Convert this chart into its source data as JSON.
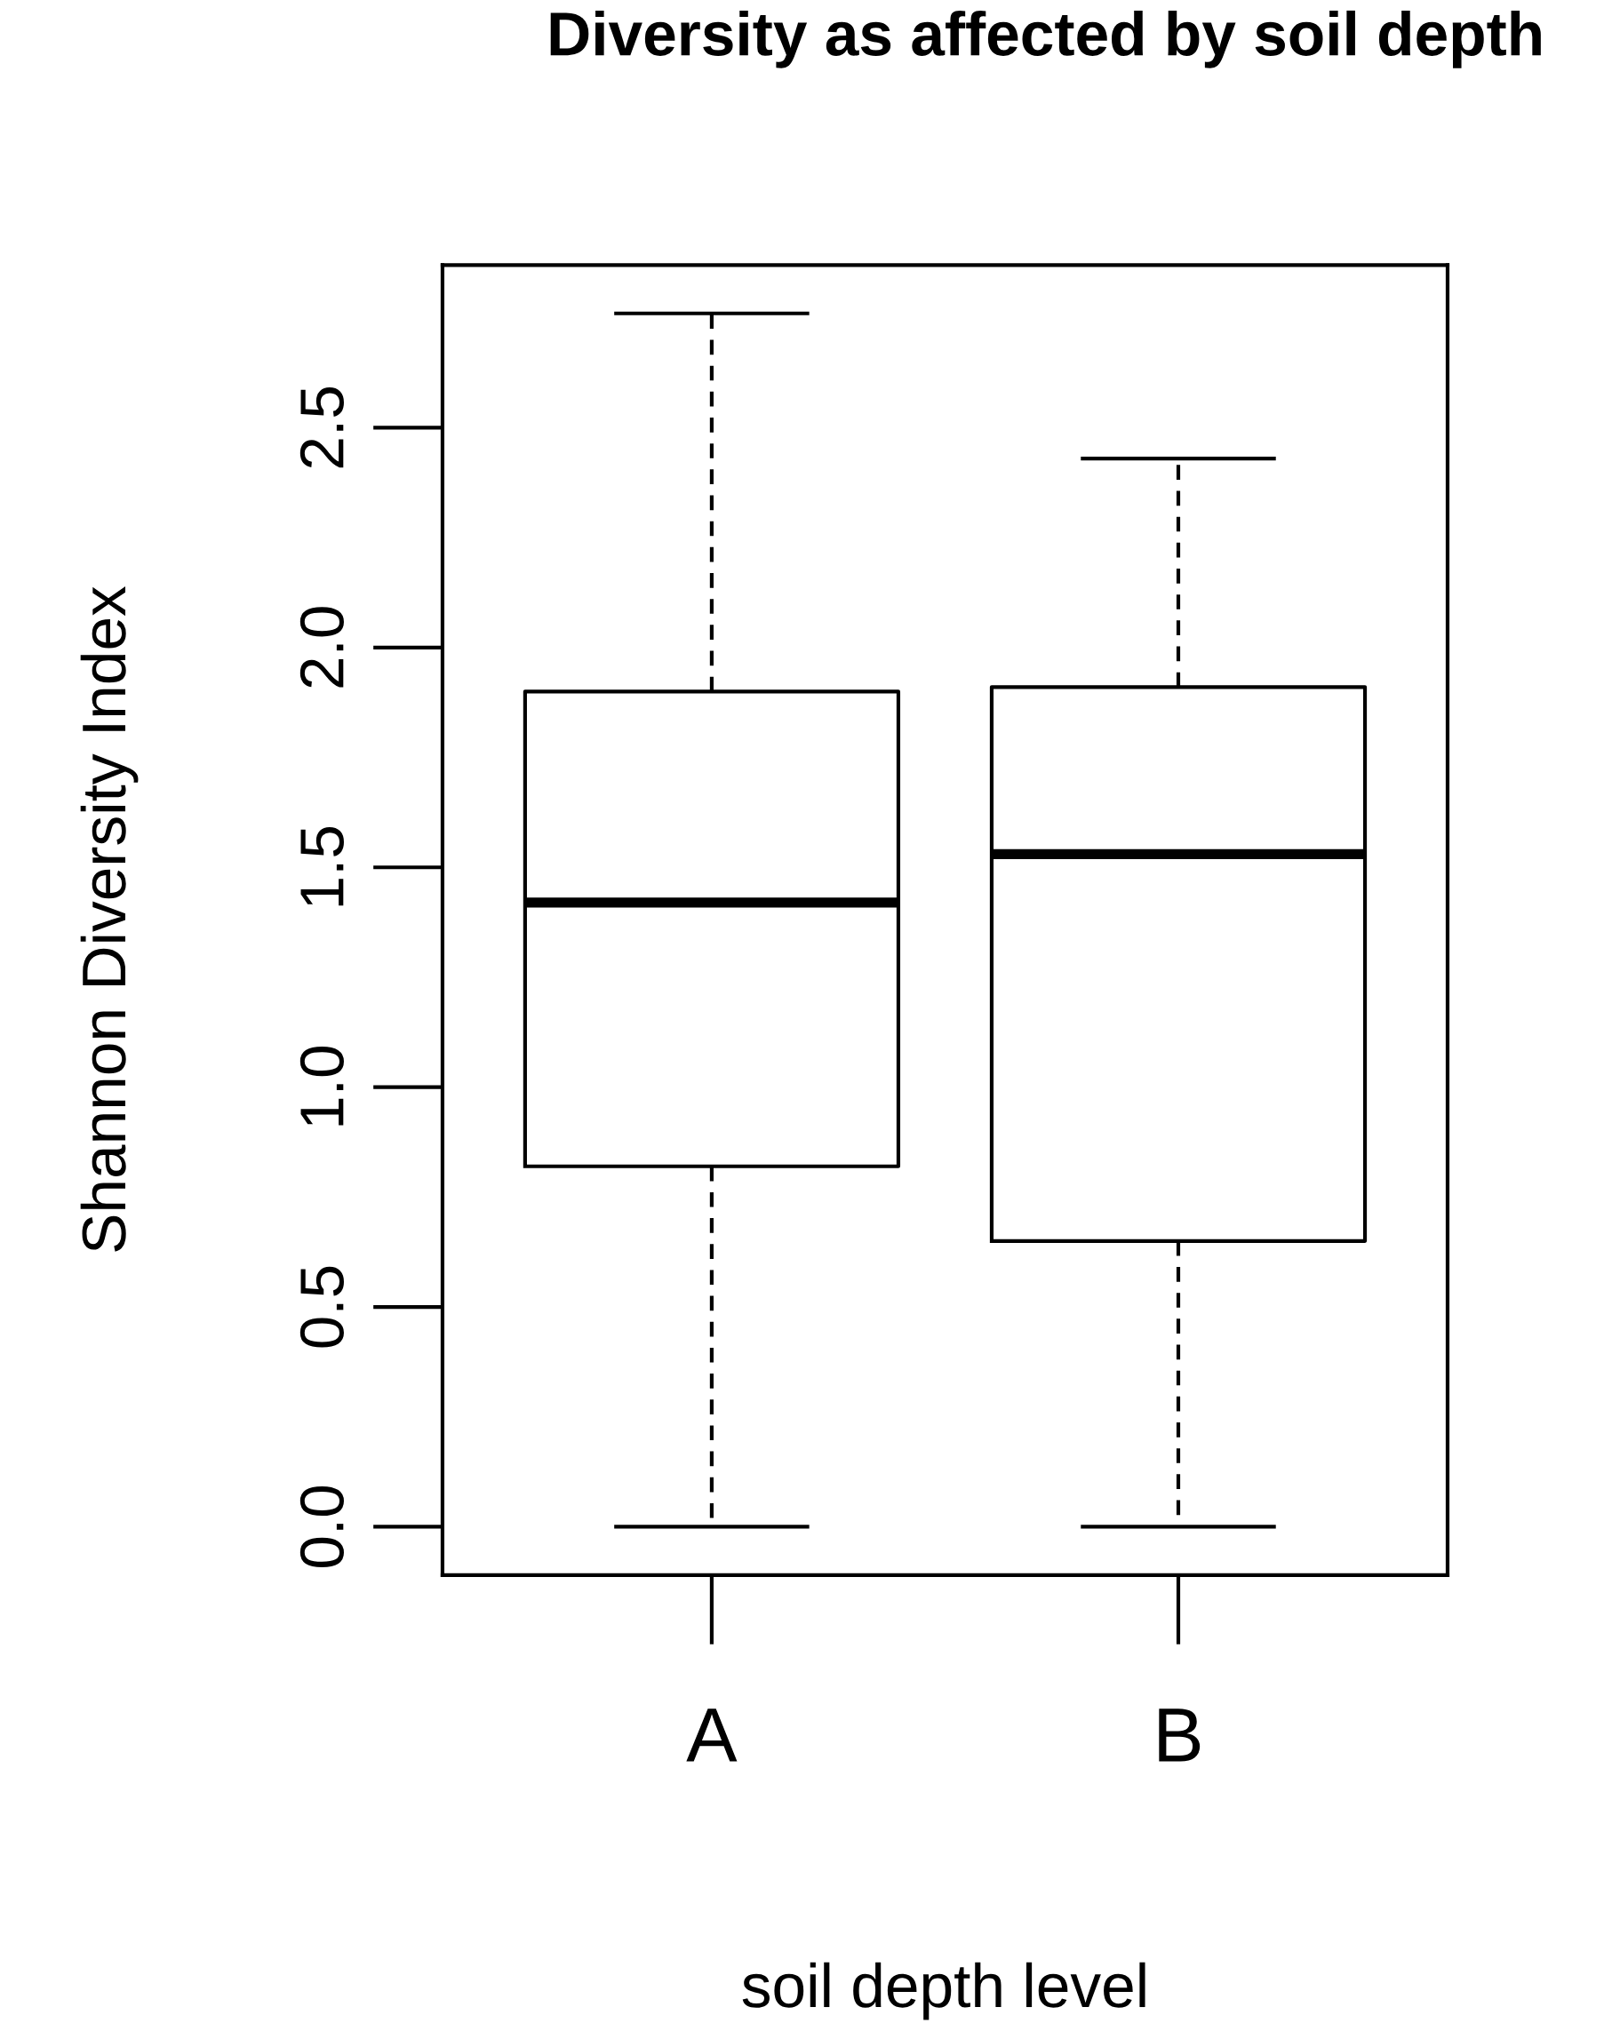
{
  "chart_data": {
    "type": "box",
    "title": "Diversity as affected by soil depth",
    "xlabel": "soil depth level",
    "ylabel": "Shannon Diversity Index",
    "categories": [
      "A",
      "B"
    ],
    "boxes": [
      {
        "low": 0,
        "q1": 0.82,
        "median": 1.42,
        "q3": 1.9,
        "high": 2.76
      },
      {
        "low": 0,
        "q1": 0.65,
        "median": 1.53,
        "q3": 1.91,
        "high": 2.43
      }
    ],
    "ylim": [
      -0.11,
      2.87
    ],
    "yticks": [
      {
        "value": 0,
        "label": "0.0"
      },
      0.5,
      {
        "value": 1,
        "label": "1.0"
      },
      1.5,
      {
        "value": 2,
        "label": "2.0"
      },
      2.5
    ],
    "line_style": "dashed"
  }
}
